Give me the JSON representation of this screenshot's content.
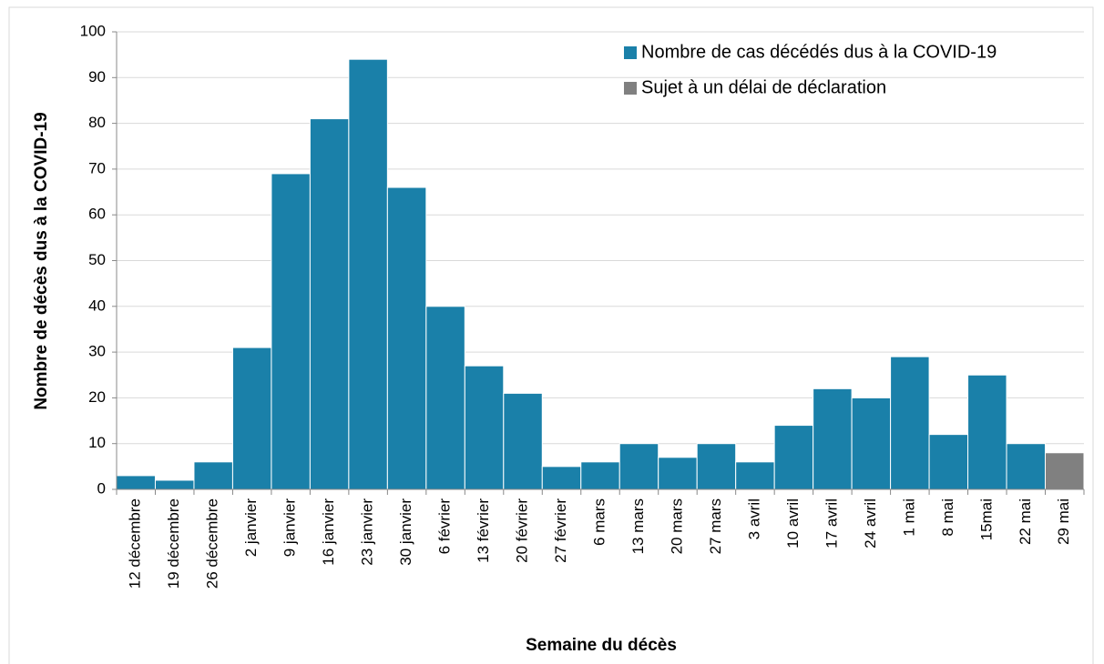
{
  "chart_data": {
    "type": "bar",
    "x_label": "Semaine du décès",
    "y_label": "Nombre de décès dus à la COVID-19",
    "categories": [
      "12 décembre",
      "19 décembre",
      "26 décembre",
      "2 janvier",
      "9 janvier",
      "16 janvier",
      "23 janvier",
      "30 janvier",
      "6 février",
      "13 février",
      "20 février",
      "27 février",
      "6 mars",
      "13 mars",
      "20 mars",
      "27 mars",
      "3 avril",
      "10 avril",
      "17 avril",
      "24 avril",
      "1 mai",
      "8 mai",
      "15mai",
      "22 mai",
      "29 mai"
    ],
    "series": [
      {
        "name": "Nombre de cas décédés dus à la COVID-19",
        "color": "#1a80a9",
        "values": [
          3,
          2,
          6,
          31,
          69,
          81,
          94,
          66,
          40,
          27,
          21,
          5,
          6,
          10,
          7,
          10,
          6,
          14,
          22,
          20,
          29,
          12,
          25,
          10,
          null
        ]
      },
      {
        "name": "Sujet à un délai de déclaration",
        "color": "#808080",
        "values": [
          null,
          null,
          null,
          null,
          null,
          null,
          null,
          null,
          null,
          null,
          null,
          null,
          null,
          null,
          null,
          null,
          null,
          null,
          null,
          null,
          null,
          null,
          null,
          null,
          8
        ]
      }
    ],
    "ylim": [
      0,
      100
    ],
    "yticks": [
      0,
      10,
      20,
      30,
      40,
      50,
      60,
      70,
      80,
      90,
      100
    ],
    "grid": true,
    "legend": "top-right"
  }
}
